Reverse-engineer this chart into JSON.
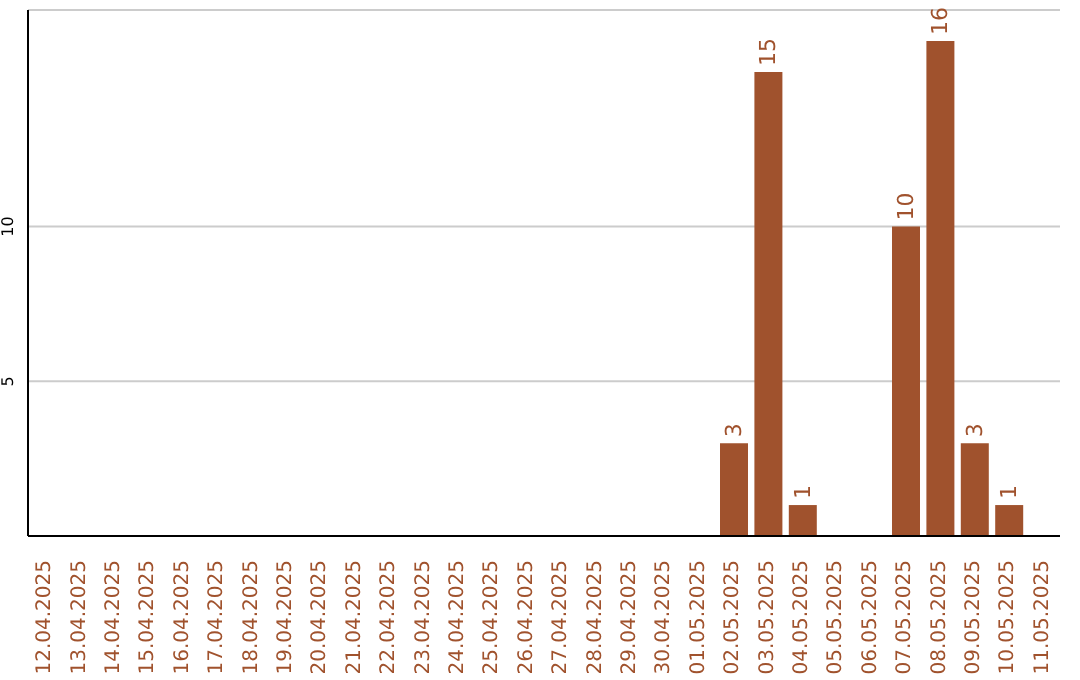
{
  "chart_data": {
    "type": "bar",
    "categories": [
      "12.04.2025",
      "13.04.2025",
      "14.04.2025",
      "15.04.2025",
      "16.04.2025",
      "17.04.2025",
      "18.04.2025",
      "19.04.2025",
      "20.04.2025",
      "21.04.2025",
      "22.04.2025",
      "23.04.2025",
      "24.04.2025",
      "25.04.2025",
      "26.04.2025",
      "27.04.2025",
      "28.04.2025",
      "29.04.2025",
      "30.04.2025",
      "01.05.2025",
      "02.05.2025",
      "03.05.2025",
      "04.05.2025",
      "05.05.2025",
      "06.05.2025",
      "07.05.2025",
      "08.05.2025",
      "09.05.2025",
      "10.05.2025",
      "11.05.2025"
    ],
    "values": [
      0,
      0,
      0,
      0,
      0,
      0,
      0,
      0,
      0,
      0,
      0,
      0,
      0,
      0,
      0,
      0,
      0,
      0,
      0,
      0,
      3,
      15,
      1,
      0,
      0,
      10,
      16,
      3,
      1,
      0
    ],
    "value_labels": [
      null,
      null,
      null,
      null,
      null,
      null,
      null,
      null,
      null,
      null,
      null,
      null,
      null,
      null,
      null,
      null,
      null,
      null,
      null,
      null,
      "3",
      "15",
      "1",
      null,
      null,
      "10",
      "16",
      "3",
      "1",
      null
    ],
    "color": "#a0522d",
    "ylim": [
      0,
      17
    ],
    "yticks": [
      5,
      10
    ],
    "grid": "y"
  }
}
